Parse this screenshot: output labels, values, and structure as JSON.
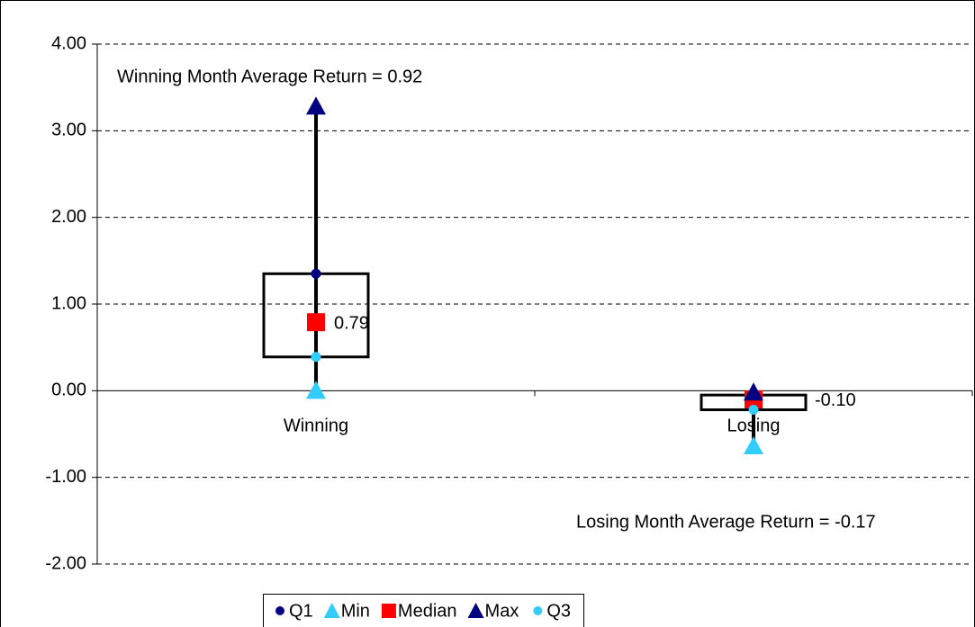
{
  "chart_data": {
    "type": "box",
    "categories": [
      "Winning",
      "Losing"
    ],
    "series": [
      {
        "name": "Q1",
        "color": "#000080",
        "marker": "circle",
        "values": [
          1.35,
          -0.05
        ]
      },
      {
        "name": "Min",
        "color": "#33ccff",
        "marker": "triangle",
        "values": [
          0.0,
          -0.64
        ]
      },
      {
        "name": "Median",
        "color": "#ff0000",
        "marker": "square",
        "values": [
          0.79,
          -0.1
        ],
        "value_labels": [
          "0.79",
          "-0.10"
        ]
      },
      {
        "name": "Max",
        "color": "#000080",
        "marker": "triangle",
        "values": [
          3.28,
          -0.02
        ]
      },
      {
        "name": "Q3",
        "color": "#33ccff",
        "marker": "circle",
        "values": [
          0.39,
          -0.22
        ]
      }
    ],
    "annotations": [
      "Winning Month Average Return = 0.92",
      "Losing Month Average Return = -0.17"
    ],
    "ylim": [
      -2,
      4
    ],
    "yticks": [
      {
        "value": -2,
        "label": "-2.00"
      },
      {
        "value": -1,
        "label": "-1.00"
      },
      {
        "value": 0,
        "label": "0.00"
      },
      {
        "value": 1,
        "label": "1.00"
      },
      {
        "value": 2,
        "label": "2.00"
      },
      {
        "value": 3,
        "label": "3.00"
      },
      {
        "value": 4,
        "label": "4.00"
      }
    ],
    "grid": true,
    "legend": "bottom"
  }
}
